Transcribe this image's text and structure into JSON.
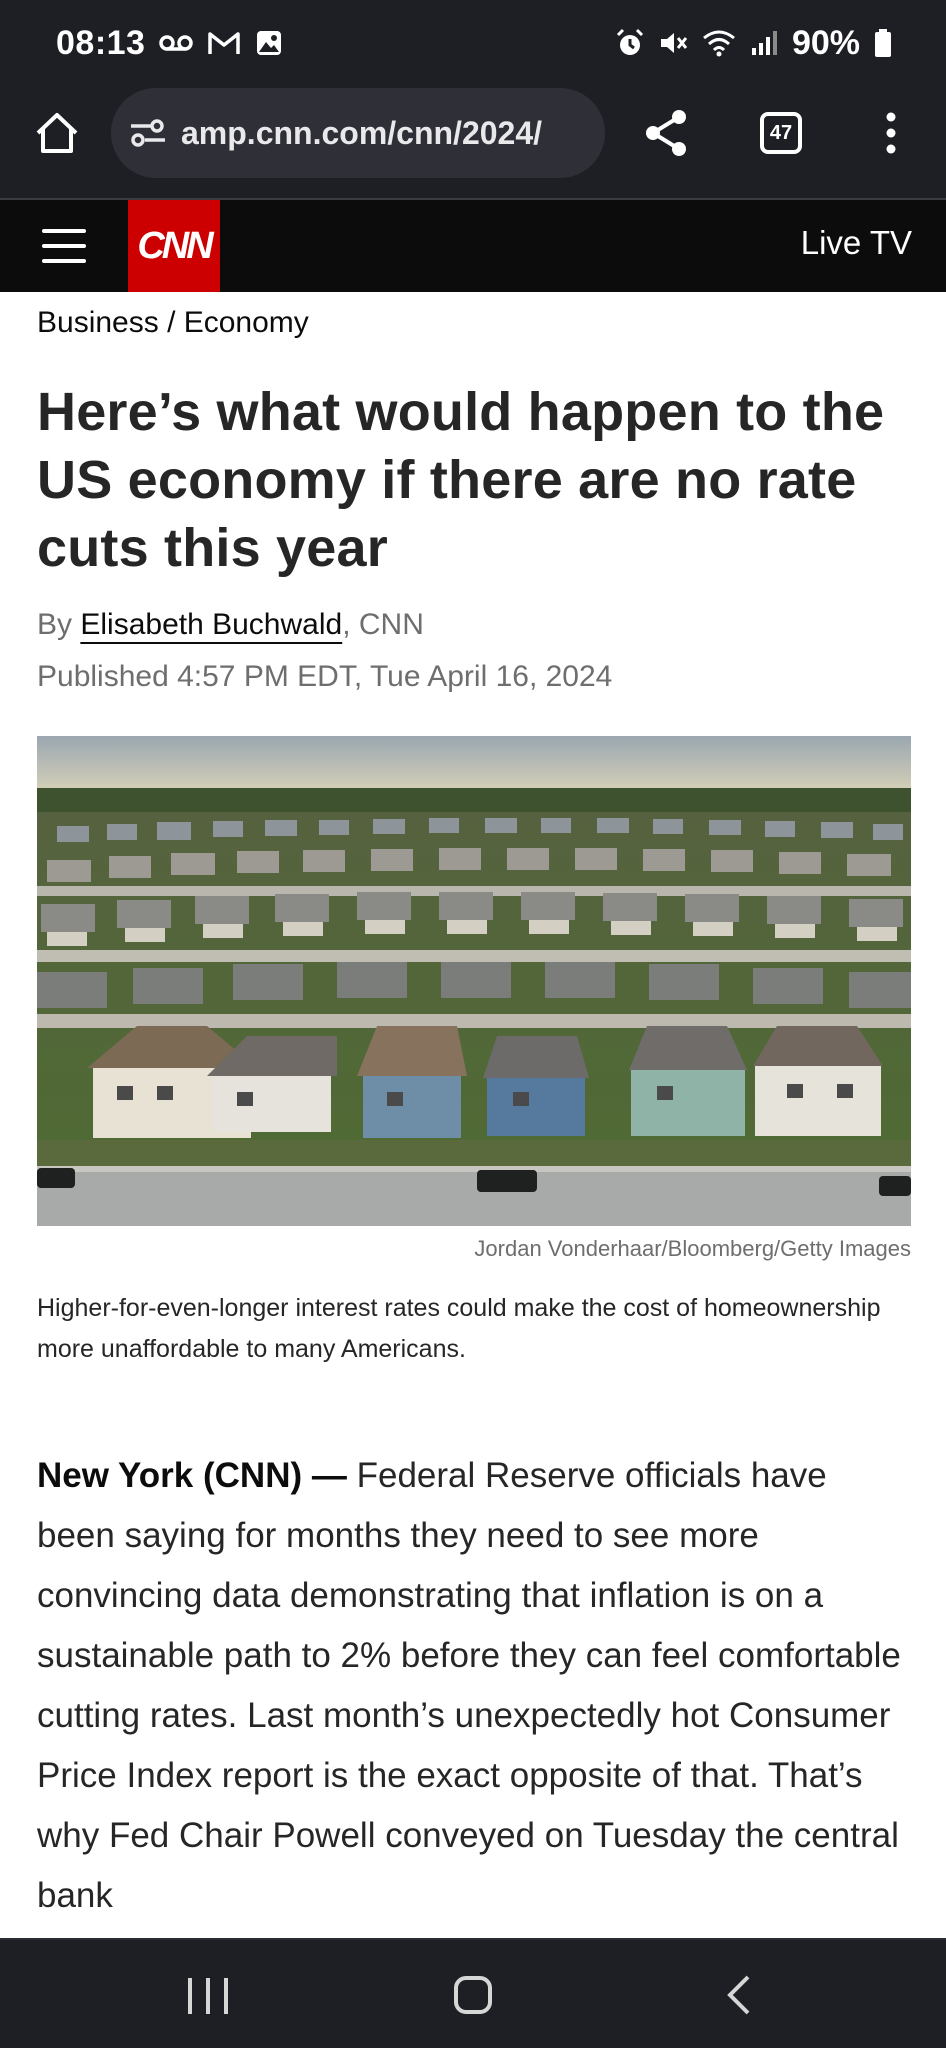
{
  "status_bar": {
    "time": "08:13",
    "battery": "90%",
    "icons_left": [
      "voicemail-icon",
      "gmail-icon",
      "gallery-icon"
    ],
    "icons_right": [
      "alarm-icon",
      "mute-icon",
      "wifi-icon",
      "signal-icon",
      "battery-icon"
    ]
  },
  "browser": {
    "url": "amp.cnn.com/cnn/2024/",
    "tab_count": "47"
  },
  "site_header": {
    "logo_text": "CNN",
    "live_tv_label": "Live TV",
    "logo_color": "#cc0000"
  },
  "article": {
    "breadcrumb": "Business / Economy",
    "headline": "Here’s what would happen to the US economy if there are no rate cuts this year",
    "byline_prefix": "By ",
    "author": "Elisabeth Buchwald",
    "byline_suffix": ", CNN",
    "published": "Published 4:57 PM EDT, Tue April 16, 2024",
    "image_credit": "Jordan Vonderhaar/Bloomberg/Getty Images",
    "caption": "Higher-for-even-longer interest rates could make the cost of homeownership more unaffordable to many Americans.",
    "dateline": "New York (CNN) — ",
    "body": "Federal Reserve officials have been saying for months they need to see more convincing data demonstrating that inflation is on a sustainable path to 2% before they can feel comfortable cutting rates. Last month’s unexpectedly hot Consumer Price Index report is the exact opposite of that. That’s why Fed Chair Powell conveyed on Tuesday the central bank"
  }
}
